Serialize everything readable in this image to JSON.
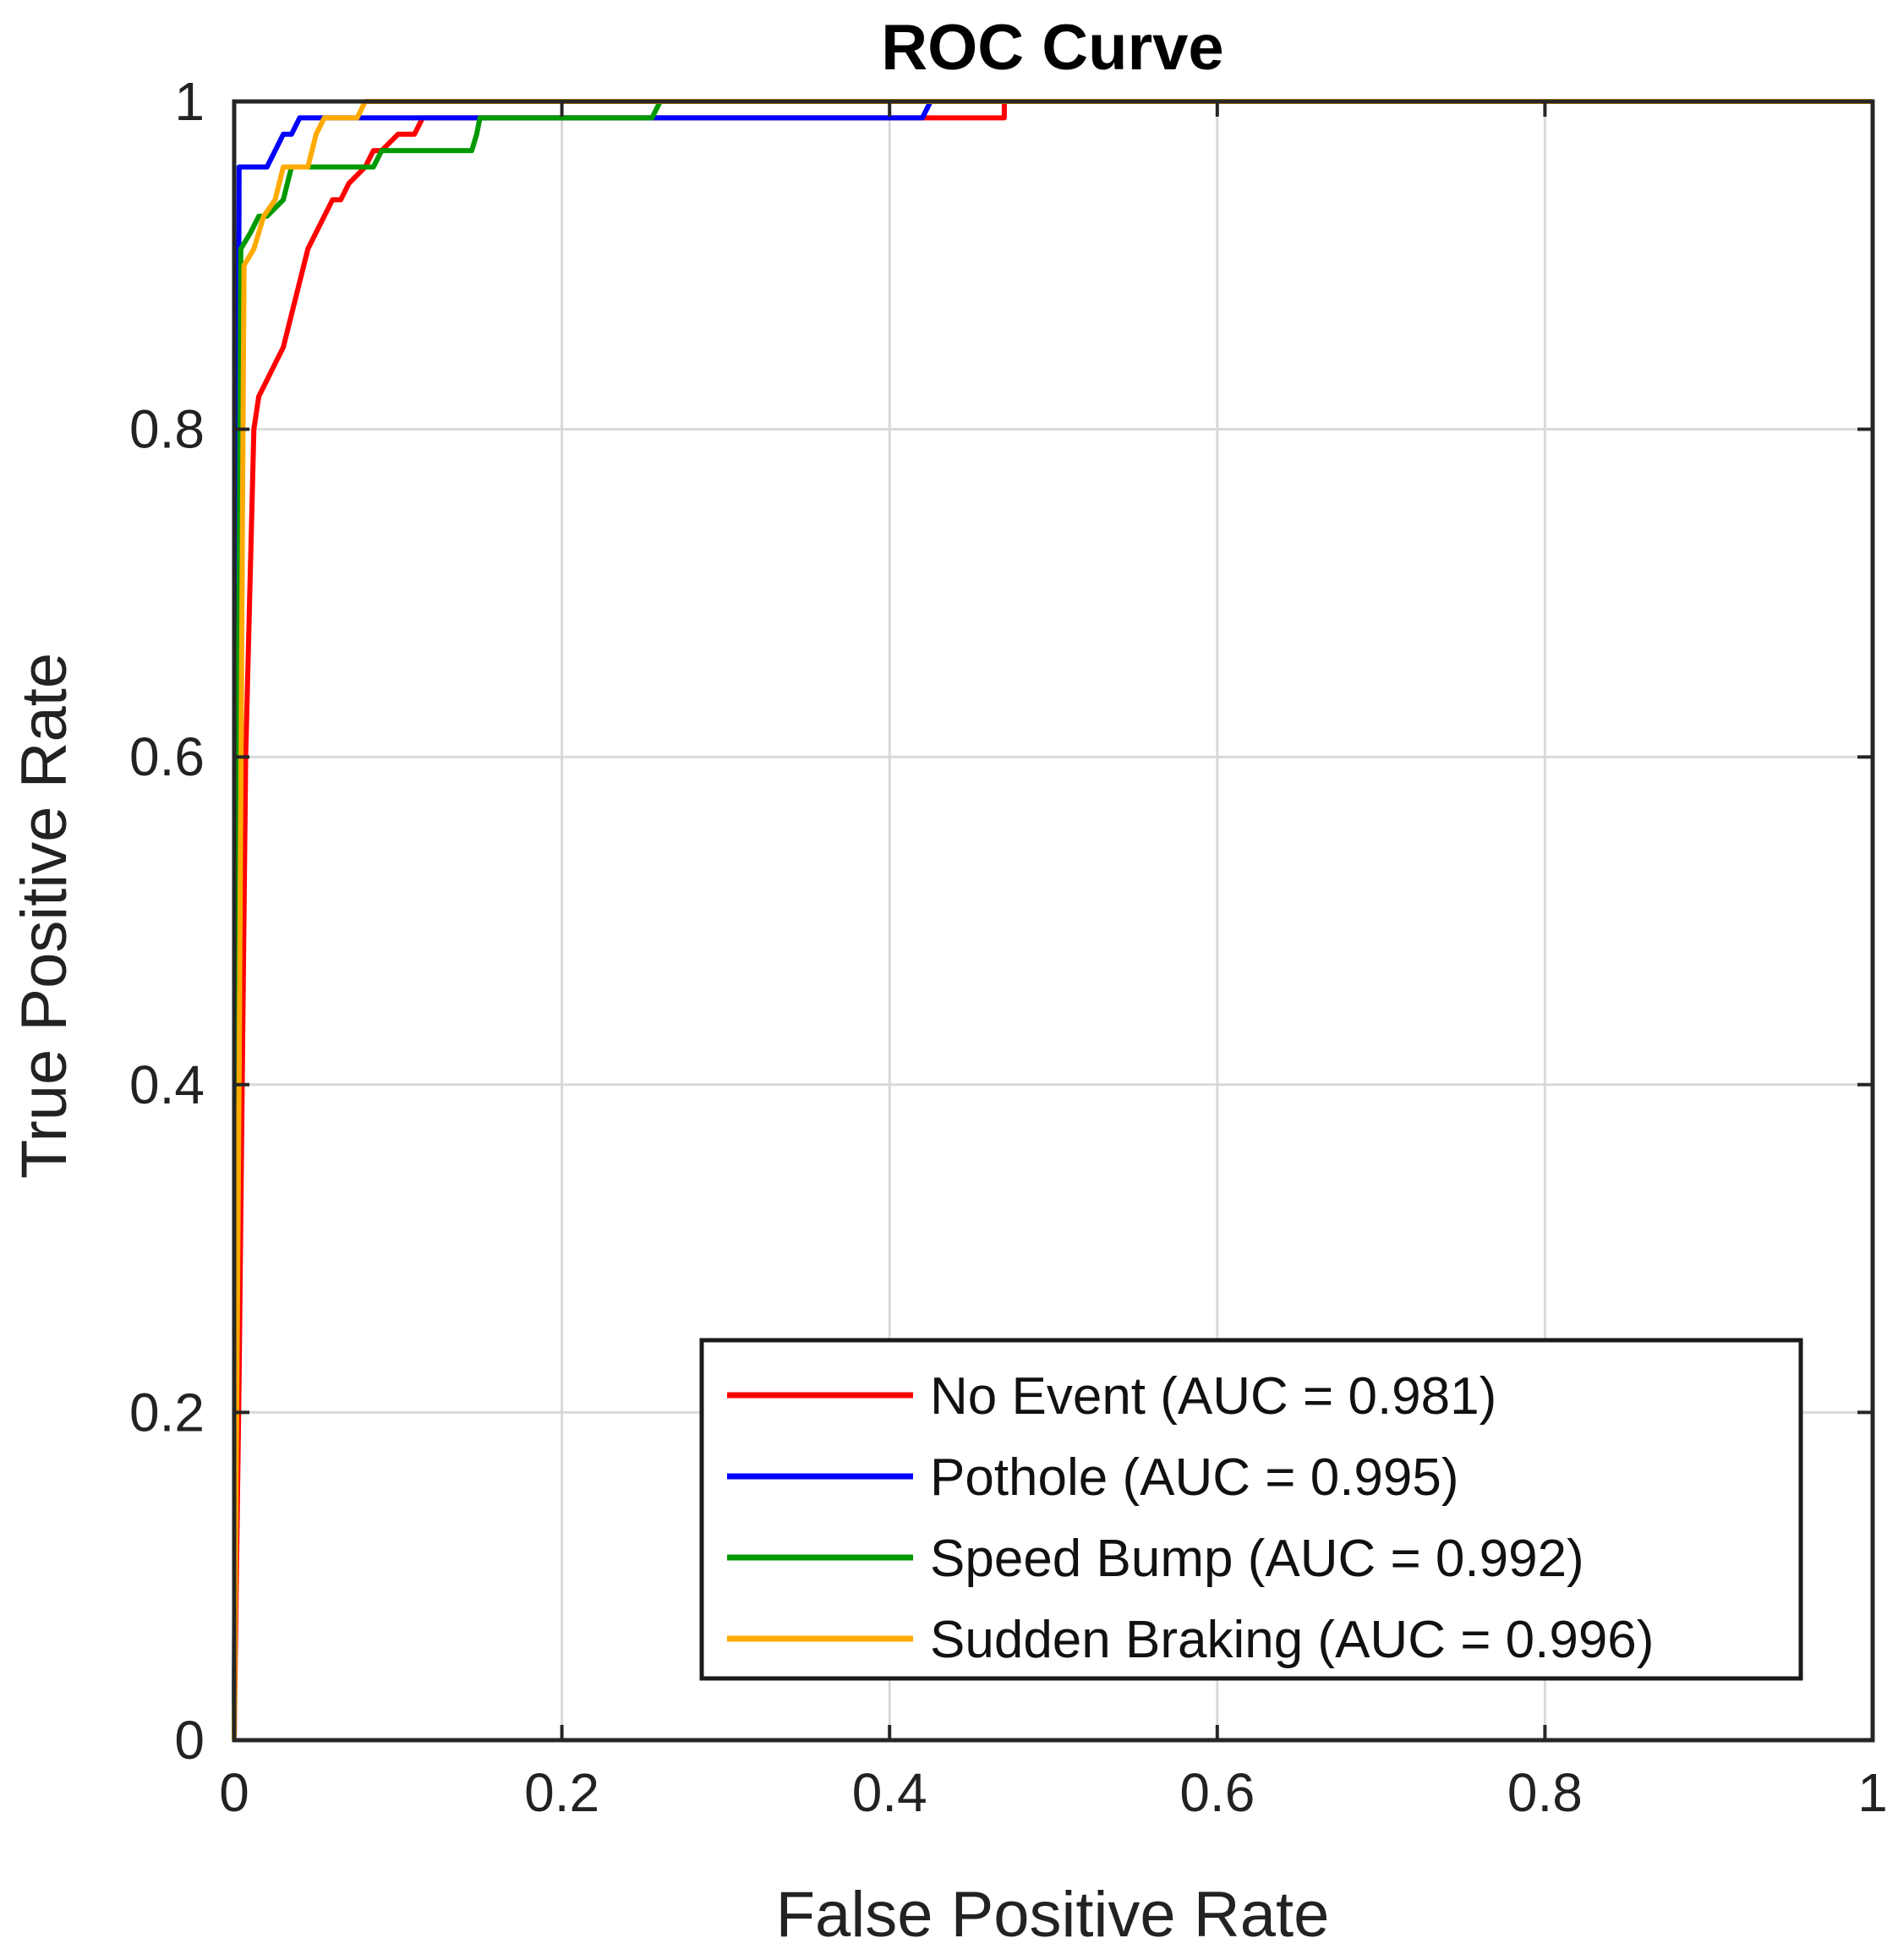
{
  "chart_data": {
    "type": "line",
    "title": "ROC Curve",
    "xlabel": "False Positive Rate",
    "ylabel": "True Positive Rate",
    "xlim": [
      0,
      1
    ],
    "ylim": [
      0,
      1
    ],
    "xticks": [
      "0",
      "0.2",
      "0.4",
      "0.6",
      "0.8",
      "1"
    ],
    "yticks": [
      "0",
      "0.2",
      "0.4",
      "0.6",
      "0.8",
      "1"
    ],
    "grid": true,
    "legend_position": "bottom-right",
    "series": [
      {
        "name": "No Event (AUC = 0.981)",
        "color": "#ff0000",
        "x": [
          0,
          0.003,
          0.007,
          0.012,
          0.015,
          0.02,
          0.025,
          0.03,
          0.035,
          0.04,
          0.045,
          0.05,
          0.06,
          0.065,
          0.07,
          0.08,
          0.085,
          0.09,
          0.1,
          0.11,
          0.115,
          0.12,
          0.43,
          0.47,
          0.47,
          1
        ],
        "y": [
          0,
          0.22,
          0.6,
          0.8,
          0.82,
          0.83,
          0.84,
          0.85,
          0.87,
          0.89,
          0.91,
          0.92,
          0.94,
          0.94,
          0.95,
          0.96,
          0.97,
          0.97,
          0.98,
          0.98,
          0.99,
          0.99,
          0.99,
          0.99,
          1.0,
          1.0
        ]
      },
      {
        "name": "Pothole (AUC = 0.995)",
        "color": "#0000ff",
        "x": [
          0,
          0.002,
          0.003,
          0.012,
          0.02,
          0.03,
          0.035,
          0.04,
          0.045,
          0.05,
          0.42,
          0.425,
          1
        ],
        "y": [
          0,
          0.6,
          0.96,
          0.96,
          0.96,
          0.98,
          0.98,
          0.99,
          0.99,
          0.99,
          0.99,
          1.0,
          1.0
        ]
      },
      {
        "name": "Speed Bump (AUC = 0.992)",
        "color": "#009900",
        "x": [
          0,
          0.002,
          0.004,
          0.01,
          0.015,
          0.02,
          0.03,
          0.035,
          0.04,
          0.05,
          0.08,
          0.085,
          0.09,
          0.12,
          0.145,
          0.148,
          0.15,
          0.25,
          0.255,
          0.26,
          1
        ],
        "y": [
          0,
          0.5,
          0.91,
          0.92,
          0.93,
          0.93,
          0.94,
          0.96,
          0.96,
          0.96,
          0.96,
          0.96,
          0.97,
          0.97,
          0.97,
          0.98,
          0.99,
          0.99,
          0.99,
          1.0,
          1.0
        ]
      },
      {
        "name": "Sudden Braking (AUC = 0.996)",
        "color": "#ffaa00",
        "x": [
          0,
          0.003,
          0.006,
          0.012,
          0.018,
          0.025,
          0.03,
          0.035,
          0.045,
          0.05,
          0.055,
          0.06,
          0.075,
          0.08,
          1
        ],
        "y": [
          0,
          0.4,
          0.9,
          0.91,
          0.93,
          0.94,
          0.96,
          0.96,
          0.96,
          0.98,
          0.99,
          0.99,
          0.99,
          1.0,
          1.0
        ]
      }
    ]
  }
}
